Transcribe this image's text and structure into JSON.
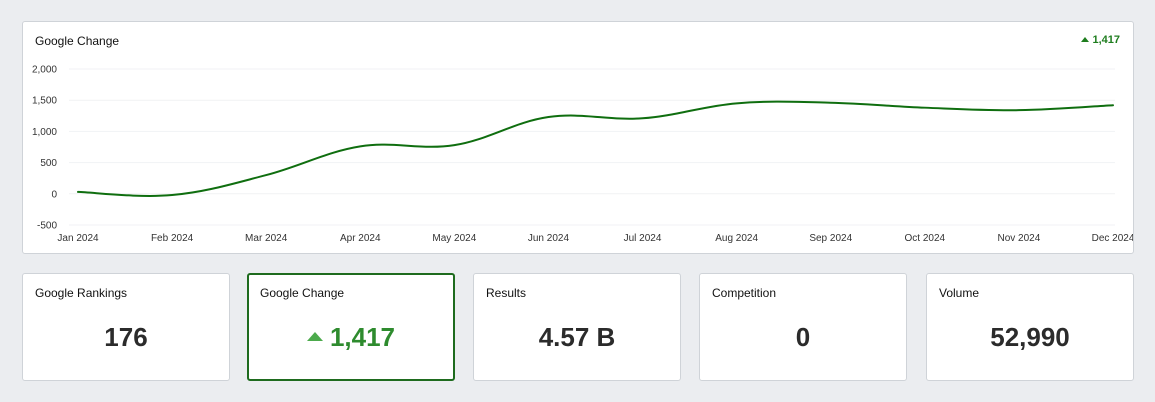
{
  "chart": {
    "title": "Google Change",
    "badge_value": "1,417",
    "colors": {
      "line": "#0f6e0f",
      "positive": "#1e7d1e"
    }
  },
  "chart_data": {
    "type": "line",
    "title": "Google Change",
    "categories": [
      "Jan 2024",
      "Feb 2024",
      "Mar 2024",
      "Apr 2024",
      "May 2024",
      "Jun 2024",
      "Jul 2024",
      "Aug 2024",
      "Sep 2024",
      "Oct 2024",
      "Nov 2024",
      "Dec 2024"
    ],
    "series": [
      {
        "name": "Google Change",
        "values": [
          30,
          -20,
          300,
          760,
          780,
          1230,
          1210,
          1450,
          1460,
          1380,
          1340,
          1420
        ]
      }
    ],
    "yticks": [
      "2,000",
      "1,500",
      "1,000",
      "500",
      "0",
      "-500"
    ],
    "ylim": [
      -500,
      2000
    ],
    "xlabel": "",
    "ylabel": "",
    "grid": true
  },
  "stats": [
    {
      "label": "Google Rankings",
      "value": "176"
    },
    {
      "label": "Google Change",
      "value": "1,417"
    },
    {
      "label": "Results",
      "value": "4.57 B"
    },
    {
      "label": "Competition",
      "value": "0"
    },
    {
      "label": "Volume",
      "value": "52,990"
    }
  ]
}
